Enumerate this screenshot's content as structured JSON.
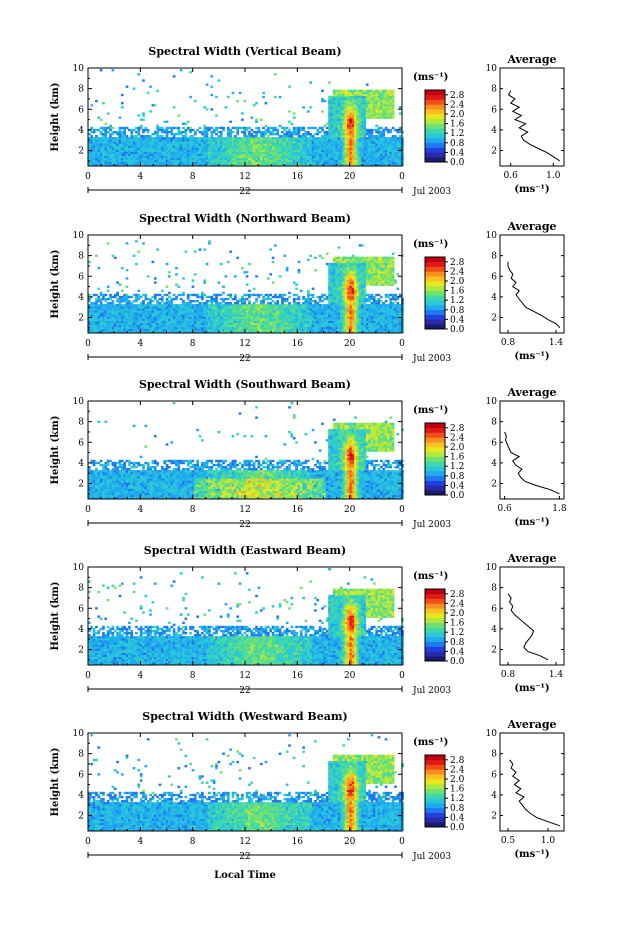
{
  "figure": {
    "x_axis_title": "Local Time",
    "y_axis_title": "Height (km)",
    "colorbar_unit": "(ms⁻¹)",
    "average_title": "Average",
    "average_unit": "(ms⁻¹)",
    "date_text": "Jul 2003",
    "day_label": "22"
  },
  "colorbar": {
    "ticks": [
      "2.8",
      "2.4",
      "2.0",
      "1.6",
      "1.2",
      "0.8",
      "0.4",
      "0.0"
    ],
    "colors": [
      "#1a1a6e",
      "#2a2aa8",
      "#2040e0",
      "#1e78f0",
      "#20a8f0",
      "#28c8d8",
      "#40d8a8",
      "#70e070",
      "#b0e840",
      "#e8e820",
      "#f8c020",
      "#f89020",
      "#f05018",
      "#e01818",
      "#c00010"
    ]
  },
  "chart_data": [
    {
      "type": "heatmap",
      "title": "Spectral Width (Vertical Beam)",
      "xlabel": "",
      "ylabel": "Height (km)",
      "xlim": [
        0,
        24
      ],
      "ylim": [
        0.5,
        10
      ],
      "x_ticks": [
        "0",
        "4",
        "8",
        "12",
        "16",
        "20",
        "0"
      ],
      "y_ticks": [
        "2",
        "4",
        "6",
        "8",
        "10"
      ],
      "colorbar_range": [
        0.0,
        3.0
      ],
      "average": {
        "x_ticks": [
          "0.6",
          "1.0"
        ],
        "xlim": [
          0.5,
          1.1
        ],
        "y_ticks": [
          "2",
          "4",
          "6",
          "8",
          "10"
        ],
        "profile": [
          [
            1.06,
            1.0
          ],
          [
            1.0,
            1.4
          ],
          [
            0.94,
            1.8
          ],
          [
            0.86,
            2.2
          ],
          [
            0.78,
            2.6
          ],
          [
            0.72,
            3.0
          ],
          [
            0.7,
            3.4
          ],
          [
            0.76,
            3.8
          ],
          [
            0.68,
            4.2
          ],
          [
            0.74,
            4.6
          ],
          [
            0.64,
            5.0
          ],
          [
            0.7,
            5.4
          ],
          [
            0.62,
            5.8
          ],
          [
            0.68,
            6.2
          ],
          [
            0.6,
            6.6
          ],
          [
            0.64,
            7.0
          ],
          [
            0.58,
            7.4
          ],
          [
            0.6,
            7.8
          ]
        ]
      }
    },
    {
      "type": "heatmap",
      "title": "Spectral Width (Northward Beam)",
      "xlabel": "",
      "ylabel": "Height (km)",
      "xlim": [
        0,
        24
      ],
      "ylim": [
        0.5,
        10
      ],
      "x_ticks": [
        "0",
        "4",
        "8",
        "12",
        "16",
        "20",
        "0"
      ],
      "y_ticks": [
        "2",
        "4",
        "6",
        "8",
        "10"
      ],
      "colorbar_range": [
        0.0,
        3.0
      ],
      "average": {
        "x_ticks": [
          "0.8",
          "1.4"
        ],
        "xlim": [
          0.7,
          1.5
        ],
        "y_ticks": [
          "2",
          "4",
          "6",
          "8",
          "10"
        ],
        "profile": [
          [
            1.45,
            1.0
          ],
          [
            1.4,
            1.4
          ],
          [
            1.3,
            1.8
          ],
          [
            1.22,
            2.2
          ],
          [
            1.12,
            2.6
          ],
          [
            1.02,
            3.0
          ],
          [
            0.98,
            3.4
          ],
          [
            0.94,
            3.8
          ],
          [
            0.9,
            4.2
          ],
          [
            0.94,
            4.6
          ],
          [
            0.86,
            5.0
          ],
          [
            0.9,
            5.4
          ],
          [
            0.84,
            5.8
          ],
          [
            0.86,
            6.2
          ],
          [
            0.82,
            6.6
          ],
          [
            0.8,
            7.0
          ],
          [
            0.8,
            7.4
          ]
        ]
      }
    },
    {
      "type": "heatmap",
      "title": "Spectral Width (Southward Beam)",
      "xlabel": "",
      "ylabel": "Height (km)",
      "xlim": [
        0,
        24
      ],
      "ylim": [
        0.5,
        10
      ],
      "x_ticks": [
        "0",
        "4",
        "8",
        "12",
        "16",
        "20",
        "0"
      ],
      "y_ticks": [
        "2",
        "4",
        "6",
        "8",
        "10"
      ],
      "colorbar_range": [
        0.0,
        3.0
      ],
      "average": {
        "x_ticks": [
          "0.6",
          "1.8"
        ],
        "xlim": [
          0.5,
          1.9
        ],
        "y_ticks": [
          "2",
          "4",
          "6",
          "8",
          "10"
        ],
        "profile": [
          [
            1.8,
            1.0
          ],
          [
            1.6,
            1.4
          ],
          [
            1.3,
            1.8
          ],
          [
            1.05,
            2.2
          ],
          [
            0.95,
            2.6
          ],
          [
            0.9,
            3.0
          ],
          [
            0.98,
            3.4
          ],
          [
            0.84,
            3.8
          ],
          [
            0.78,
            4.2
          ],
          [
            0.92,
            4.6
          ],
          [
            0.74,
            5.0
          ],
          [
            0.7,
            5.4
          ],
          [
            0.66,
            5.8
          ],
          [
            0.62,
            6.2
          ],
          [
            0.64,
            6.6
          ],
          [
            0.6,
            7.0
          ]
        ]
      }
    },
    {
      "type": "heatmap",
      "title": "Spectral Width (Eastward Beam)",
      "xlabel": "",
      "ylabel": "Height (km)",
      "xlim": [
        0,
        24
      ],
      "ylim": [
        0.5,
        10
      ],
      "x_ticks": [
        "0",
        "4",
        "8",
        "12",
        "16",
        "20",
        "0"
      ],
      "y_ticks": [
        "2",
        "4",
        "6",
        "8",
        "10"
      ],
      "colorbar_range": [
        0.0,
        3.0
      ],
      "average": {
        "x_ticks": [
          "0.8",
          "1.4"
        ],
        "xlim": [
          0.7,
          1.5
        ],
        "y_ticks": [
          "2",
          "4",
          "6",
          "8",
          "10"
        ],
        "profile": [
          [
            1.3,
            1.0
          ],
          [
            1.2,
            1.4
          ],
          [
            1.05,
            1.8
          ],
          [
            1.0,
            2.2
          ],
          [
            1.02,
            2.6
          ],
          [
            1.06,
            3.0
          ],
          [
            1.1,
            3.4
          ],
          [
            1.12,
            3.8
          ],
          [
            1.06,
            4.2
          ],
          [
            1.0,
            4.6
          ],
          [
            0.94,
            5.0
          ],
          [
            0.88,
            5.4
          ],
          [
            0.84,
            5.8
          ],
          [
            0.86,
            6.2
          ],
          [
            0.82,
            6.6
          ],
          [
            0.84,
            7.0
          ],
          [
            0.8,
            7.4
          ]
        ]
      }
    },
    {
      "type": "heatmap",
      "title": "Spectral Width (Westward Beam)",
      "xlabel": "Local Time",
      "ylabel": "Height (km)",
      "xlim": [
        0,
        24
      ],
      "ylim": [
        0.5,
        10
      ],
      "x_ticks": [
        "0",
        "4",
        "8",
        "12",
        "16",
        "20",
        "0"
      ],
      "y_ticks": [
        "2",
        "4",
        "6",
        "8",
        "10"
      ],
      "colorbar_range": [
        0.0,
        3.0
      ],
      "average": {
        "x_ticks": [
          "0.5",
          "1.0"
        ],
        "xlim": [
          0.4,
          1.2
        ],
        "y_ticks": [
          "2",
          "4",
          "6",
          "8",
          "10"
        ],
        "profile": [
          [
            1.15,
            1.0
          ],
          [
            1.0,
            1.4
          ],
          [
            0.86,
            1.8
          ],
          [
            0.78,
            2.2
          ],
          [
            0.72,
            2.6
          ],
          [
            0.68,
            3.0
          ],
          [
            0.64,
            3.4
          ],
          [
            0.7,
            3.8
          ],
          [
            0.6,
            4.2
          ],
          [
            0.66,
            4.6
          ],
          [
            0.58,
            5.0
          ],
          [
            0.64,
            5.4
          ],
          [
            0.56,
            5.8
          ],
          [
            0.6,
            6.2
          ],
          [
            0.54,
            6.6
          ],
          [
            0.56,
            7.0
          ],
          [
            0.52,
            7.4
          ]
        ]
      }
    }
  ]
}
